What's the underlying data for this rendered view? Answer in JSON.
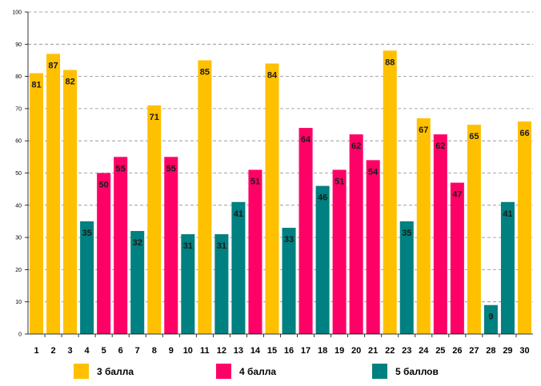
{
  "chart_data": {
    "type": "bar",
    "categories": [
      "1",
      "2",
      "3",
      "4",
      "5",
      "6",
      "7",
      "8",
      "9",
      "10",
      "11",
      "12",
      "13",
      "14",
      "15",
      "16",
      "17",
      "18",
      "19",
      "20",
      "21",
      "22",
      "23",
      "24",
      "25",
      "26",
      "27",
      "28",
      "29",
      "30"
    ],
    "values": [
      81,
      87,
      82,
      35,
      50,
      55,
      32,
      71,
      55,
      31,
      85,
      31,
      41,
      51,
      84,
      33,
      64,
      46,
      51,
      62,
      54,
      88,
      35,
      67,
      62,
      47,
      65,
      9,
      41,
      66
    ],
    "groups": [
      "3",
      "3",
      "3",
      "5",
      "4",
      "4",
      "5",
      "3",
      "4",
      "5",
      "3",
      "5",
      "5",
      "4",
      "3",
      "5",
      "4",
      "5",
      "4",
      "4",
      "4",
      "3",
      "5",
      "3",
      "4",
      "4",
      "3",
      "5",
      "5",
      "3"
    ],
    "y_ticks": [
      "0",
      "10",
      "20",
      "30",
      "40",
      "50",
      "60",
      "70",
      "80",
      "90",
      "100"
    ],
    "ylim": [
      0,
      100
    ],
    "grid": true,
    "legend": [
      {
        "key": "3",
        "label": "3 балла",
        "color": "#ffc000"
      },
      {
        "key": "4",
        "label": "4 балла",
        "color": "#ff0066"
      },
      {
        "key": "5",
        "label": "5 баллов",
        "color": "#008080"
      }
    ]
  }
}
